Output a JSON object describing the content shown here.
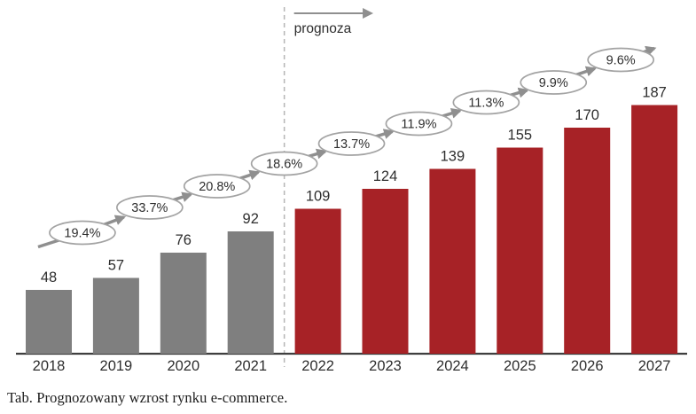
{
  "chart_data": {
    "type": "bar",
    "title": "",
    "xlabel": "",
    "ylabel": "",
    "categories": [
      "2018",
      "2019",
      "2020",
      "2021",
      "2022",
      "2023",
      "2024",
      "2025",
      "2026",
      "2027"
    ],
    "values": [
      48,
      57,
      76,
      92,
      109,
      124,
      139,
      155,
      170,
      187
    ],
    "historical_count": 4,
    "forecast_label": "prognoza",
    "growth_labels": [
      "19.4%",
      "33.7%",
      "20.8%",
      "18.6%",
      "13.7%",
      "11.9%",
      "11.3%",
      "9.9%",
      "9.6%"
    ],
    "ylim": [
      0,
      200
    ],
    "grid": false,
    "legend": null,
    "colors": {
      "historical_bar": "#7F7F7F",
      "forecast_bar": "#A72226",
      "divider": "#B5B5B5",
      "chain_line": "#8F8F8F",
      "bubble_stroke": "#A3A3A3",
      "bubble_fill": "#FFFFFF",
      "axis": "#3F3F3F",
      "label_text": "#2E2E2E"
    }
  },
  "caption": "Tab. Prognozowany wzrost rynku e-commerce."
}
